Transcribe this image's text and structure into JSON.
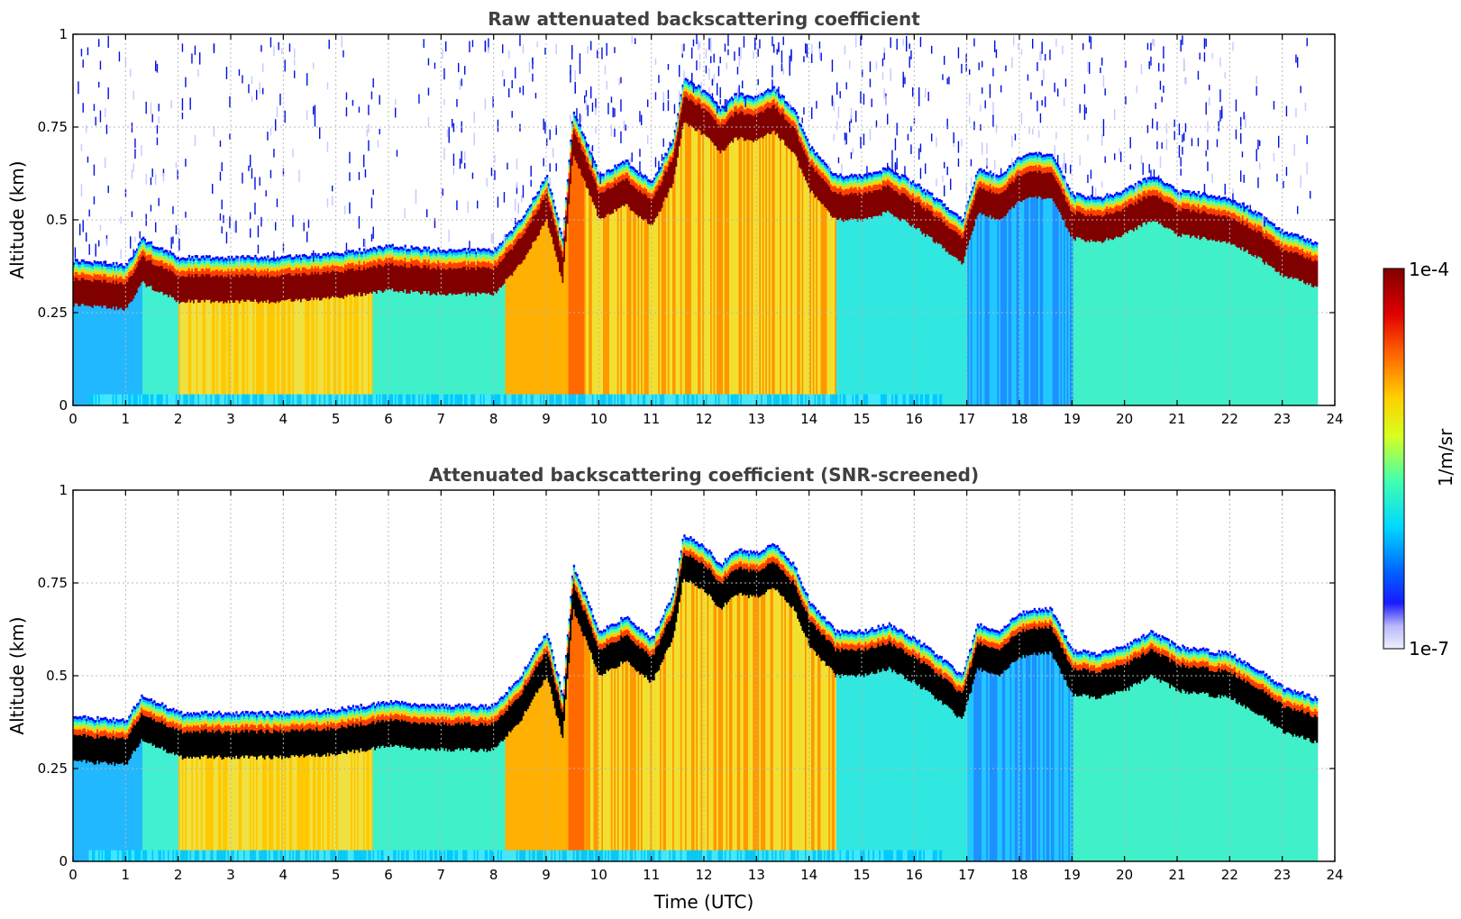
{
  "chart_data": [
    {
      "type": "heatmap",
      "title": "Raw attenuated backscattering coefficient",
      "xlabel": "",
      "ylabel": "Altitude (km)",
      "xlim": [
        0,
        24
      ],
      "ylim": [
        0,
        1
      ],
      "xticks": [
        "0",
        "1",
        "2",
        "3",
        "4",
        "5",
        "6",
        "7",
        "8",
        "9",
        "10",
        "11",
        "12",
        "13",
        "14",
        "15",
        "16",
        "17",
        "18",
        "19",
        "20",
        "21",
        "22",
        "23",
        "24"
      ],
      "yticks": [
        "0",
        "0.25",
        "0.5",
        "0.75",
        "1"
      ],
      "grid": true,
      "screened": false,
      "boundary_layer_top_km": {
        "time_utc": [
          0,
          1,
          1.3,
          2,
          3,
          4,
          5,
          6,
          7,
          8,
          8.5,
          9,
          9.3,
          9.5,
          10,
          10.5,
          11,
          11.4,
          11.6,
          12,
          12.3,
          12.6,
          13,
          13.3,
          13.7,
          14,
          14.5,
          15,
          15.5,
          16,
          16.5,
          16.9,
          17.2,
          17.6,
          18,
          18.3,
          18.6,
          19,
          19.5,
          20,
          20.5,
          21,
          21.5,
          22,
          22.5,
          23,
          23.65
        ],
        "top_km": [
          0.39,
          0.38,
          0.45,
          0.4,
          0.4,
          0.4,
          0.41,
          0.43,
          0.42,
          0.42,
          0.5,
          0.62,
          0.45,
          0.8,
          0.62,
          0.66,
          0.6,
          0.72,
          0.88,
          0.85,
          0.8,
          0.84,
          0.83,
          0.86,
          0.8,
          0.7,
          0.62,
          0.62,
          0.64,
          0.6,
          0.55,
          0.5,
          0.64,
          0.62,
          0.67,
          0.68,
          0.68,
          0.57,
          0.56,
          0.58,
          0.62,
          0.58,
          0.57,
          0.56,
          0.52,
          0.47,
          0.44
        ]
      }
    },
    {
      "type": "heatmap",
      "title": "Attenuated backscattering coefficient (SNR-screened)",
      "xlabel": "Time (UTC)",
      "ylabel": "Altitude (km)",
      "xlim": [
        0,
        24
      ],
      "ylim": [
        0,
        1
      ],
      "xticks": [
        "0",
        "1",
        "2",
        "3",
        "4",
        "5",
        "6",
        "7",
        "8",
        "9",
        "10",
        "11",
        "12",
        "13",
        "14",
        "15",
        "16",
        "17",
        "18",
        "19",
        "20",
        "21",
        "22",
        "23",
        "24"
      ],
      "yticks": [
        "0",
        "0.25",
        "0.5",
        "0.75",
        "1"
      ],
      "grid": true,
      "screened": true,
      "boundary_layer_top_km": {
        "time_utc": [
          0,
          1,
          1.3,
          2,
          3,
          4,
          5,
          6,
          7,
          8,
          8.5,
          9,
          9.3,
          9.5,
          10,
          10.5,
          11,
          11.4,
          11.6,
          12,
          12.3,
          12.6,
          13,
          13.3,
          13.7,
          14,
          14.5,
          15,
          15.5,
          16,
          16.5,
          16.9,
          17.2,
          17.6,
          18,
          18.3,
          18.6,
          19,
          19.5,
          20,
          20.5,
          21,
          21.5,
          22,
          22.5,
          23,
          23.65
        ],
        "top_km": [
          0.39,
          0.38,
          0.45,
          0.4,
          0.4,
          0.4,
          0.41,
          0.43,
          0.42,
          0.42,
          0.5,
          0.62,
          0.45,
          0.8,
          0.62,
          0.66,
          0.6,
          0.72,
          0.88,
          0.85,
          0.8,
          0.84,
          0.83,
          0.86,
          0.8,
          0.7,
          0.62,
          0.62,
          0.64,
          0.6,
          0.55,
          0.5,
          0.64,
          0.62,
          0.67,
          0.68,
          0.68,
          0.57,
          0.56,
          0.58,
          0.62,
          0.58,
          0.57,
          0.56,
          0.52,
          0.47,
          0.44
        ]
      }
    }
  ],
  "colorbar": {
    "max_label": "1e-4",
    "min_label": "1e-7",
    "units_label": "1/m/sr",
    "colormap": [
      "#0000c8",
      "#0000ff",
      "#0080ff",
      "#00ffff",
      "#80ff80",
      "#ffff00",
      "#ff8000",
      "#ff0000",
      "#800000"
    ],
    "screened_saturation_color": "#000000"
  },
  "data_end_utc": 23.65
}
